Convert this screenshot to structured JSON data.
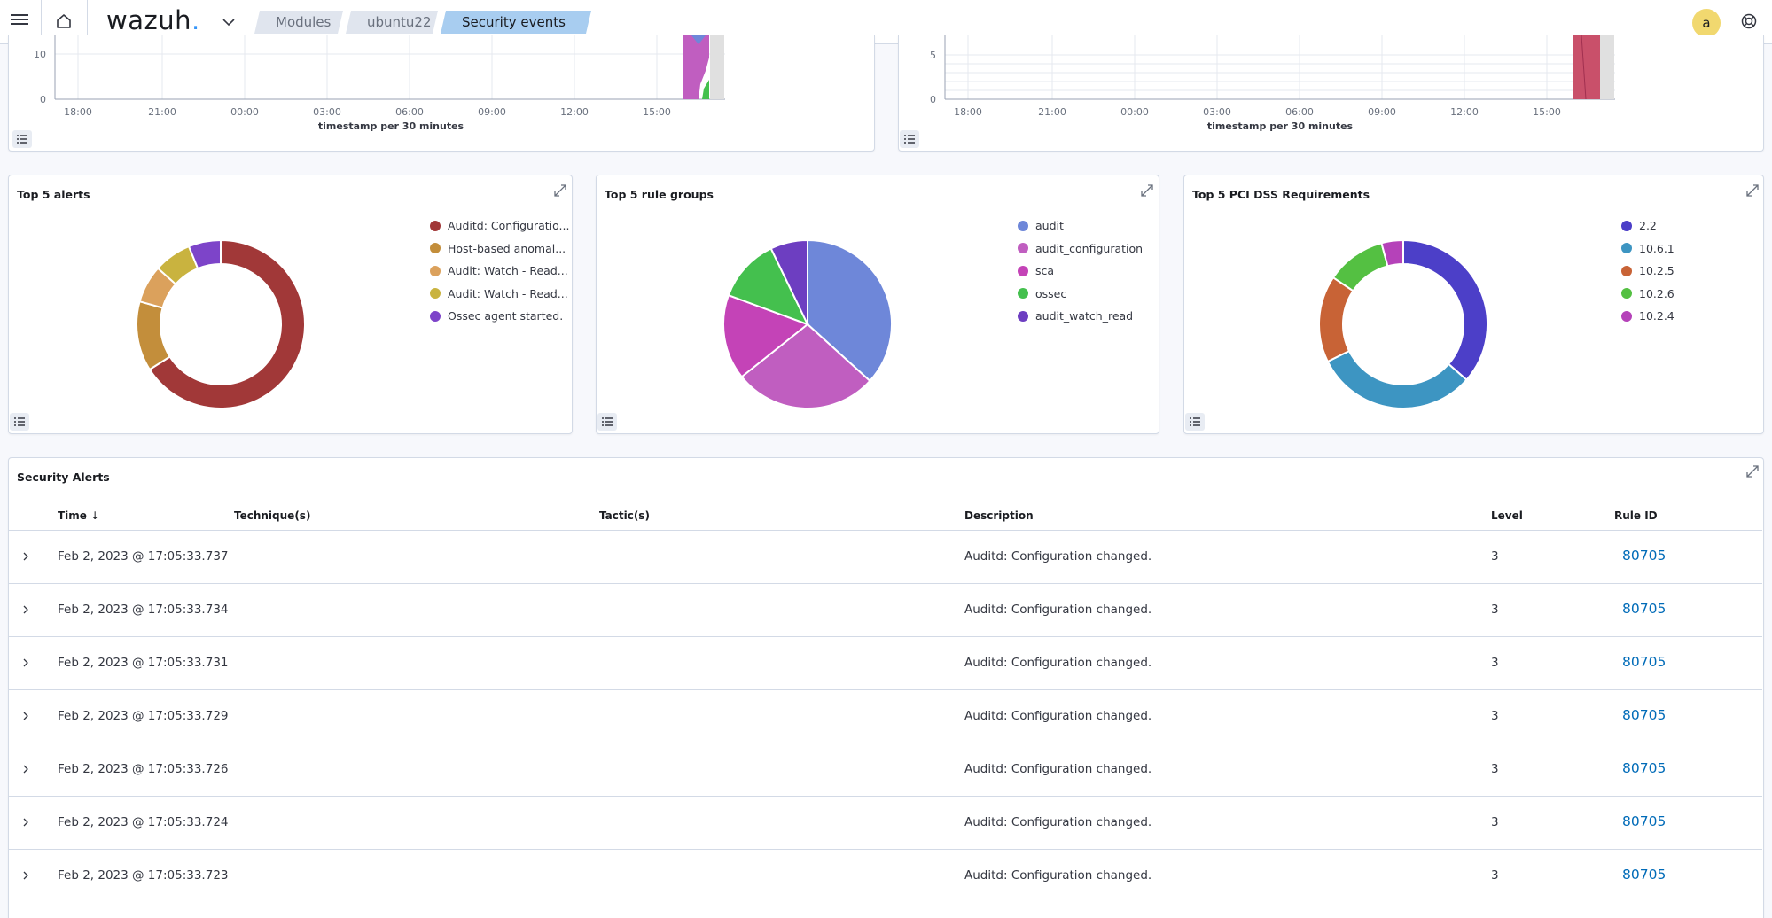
{
  "header": {
    "logo_text": "wazuh",
    "logo_dot": ".",
    "breadcrumbs": [
      "Modules",
      "ubuntu22",
      "Security events"
    ],
    "avatar_letter": "a"
  },
  "histograms": [
    {
      "y_ticks": [
        "0",
        "10"
      ],
      "x_ticks": [
        "18:00",
        "21:00",
        "00:00",
        "03:00",
        "06:00",
        "09:00",
        "12:00",
        "15:00"
      ],
      "x_title": "timestamp per 30 minutes"
    },
    {
      "y_ticks": [
        "0",
        "5"
      ],
      "x_ticks": [
        "18:00",
        "21:00",
        "00:00",
        "03:00",
        "06:00",
        "09:00",
        "12:00",
        "15:00"
      ],
      "x_title": "timestamp per 30 minutes"
    }
  ],
  "chart_data": [
    {
      "type": "pie",
      "title": "Top 5 alerts",
      "donut": true,
      "labels": [
        "Auditd: Configuratio...",
        "Host-based anomal...",
        "Audit: Watch - Read...",
        "Audit: Watch - Read...",
        "Ossec agent started."
      ],
      "values": [
        64,
        13,
        7,
        7,
        6
      ],
      "colors": [
        "#a13838",
        "#c38e3b",
        "#dba15c",
        "#c9b33f",
        "#7d44c9"
      ],
      "legend_position": "right"
    },
    {
      "type": "pie",
      "title": "Top 5 rule groups",
      "donut": false,
      "labels": [
        "audit",
        "audit_configuration",
        "sca",
        "ossec",
        "audit_watch_read"
      ],
      "values": [
        36,
        27,
        16,
        12,
        7
      ],
      "colors": [
        "#6e87d9",
        "#c05ec0",
        "#c443b7",
        "#44c04e",
        "#6d3ec1"
      ],
      "legend_position": "right"
    },
    {
      "type": "pie",
      "title": "Top 5 PCI DSS Requirements",
      "donut": true,
      "labels": [
        "2.2",
        "10.6.1",
        "10.2.5",
        "10.2.6",
        "10.2.4"
      ],
      "values": [
        35,
        30,
        16,
        11,
        4
      ],
      "colors": [
        "#4c3fc8",
        "#3d95c2",
        "#c86336",
        "#54c042",
        "#b542b9"
      ],
      "legend_position": "right"
    }
  ],
  "alerts_table": {
    "title": "Security Alerts",
    "columns": [
      "Time",
      "Technique(s)",
      "Tactic(s)",
      "Description",
      "Level",
      "Rule ID"
    ],
    "rows": [
      {
        "time": "Feb 2, 2023 @ 17:05:33.737",
        "description": "Auditd: Configuration changed.",
        "level": "3",
        "rule_id": "80705"
      },
      {
        "time": "Feb 2, 2023 @ 17:05:33.734",
        "description": "Auditd: Configuration changed.",
        "level": "3",
        "rule_id": "80705"
      },
      {
        "time": "Feb 2, 2023 @ 17:05:33.731",
        "description": "Auditd: Configuration changed.",
        "level": "3",
        "rule_id": "80705"
      },
      {
        "time": "Feb 2, 2023 @ 17:05:33.729",
        "description": "Auditd: Configuration changed.",
        "level": "3",
        "rule_id": "80705"
      },
      {
        "time": "Feb 2, 2023 @ 17:05:33.726",
        "description": "Auditd: Configuration changed.",
        "level": "3",
        "rule_id": "80705"
      },
      {
        "time": "Feb 2, 2023 @ 17:05:33.724",
        "description": "Auditd: Configuration changed.",
        "level": "3",
        "rule_id": "80705"
      },
      {
        "time": "Feb 2, 2023 @ 17:05:33.723",
        "description": "Auditd: Configuration changed.",
        "level": "3",
        "rule_id": "80705"
      }
    ]
  }
}
